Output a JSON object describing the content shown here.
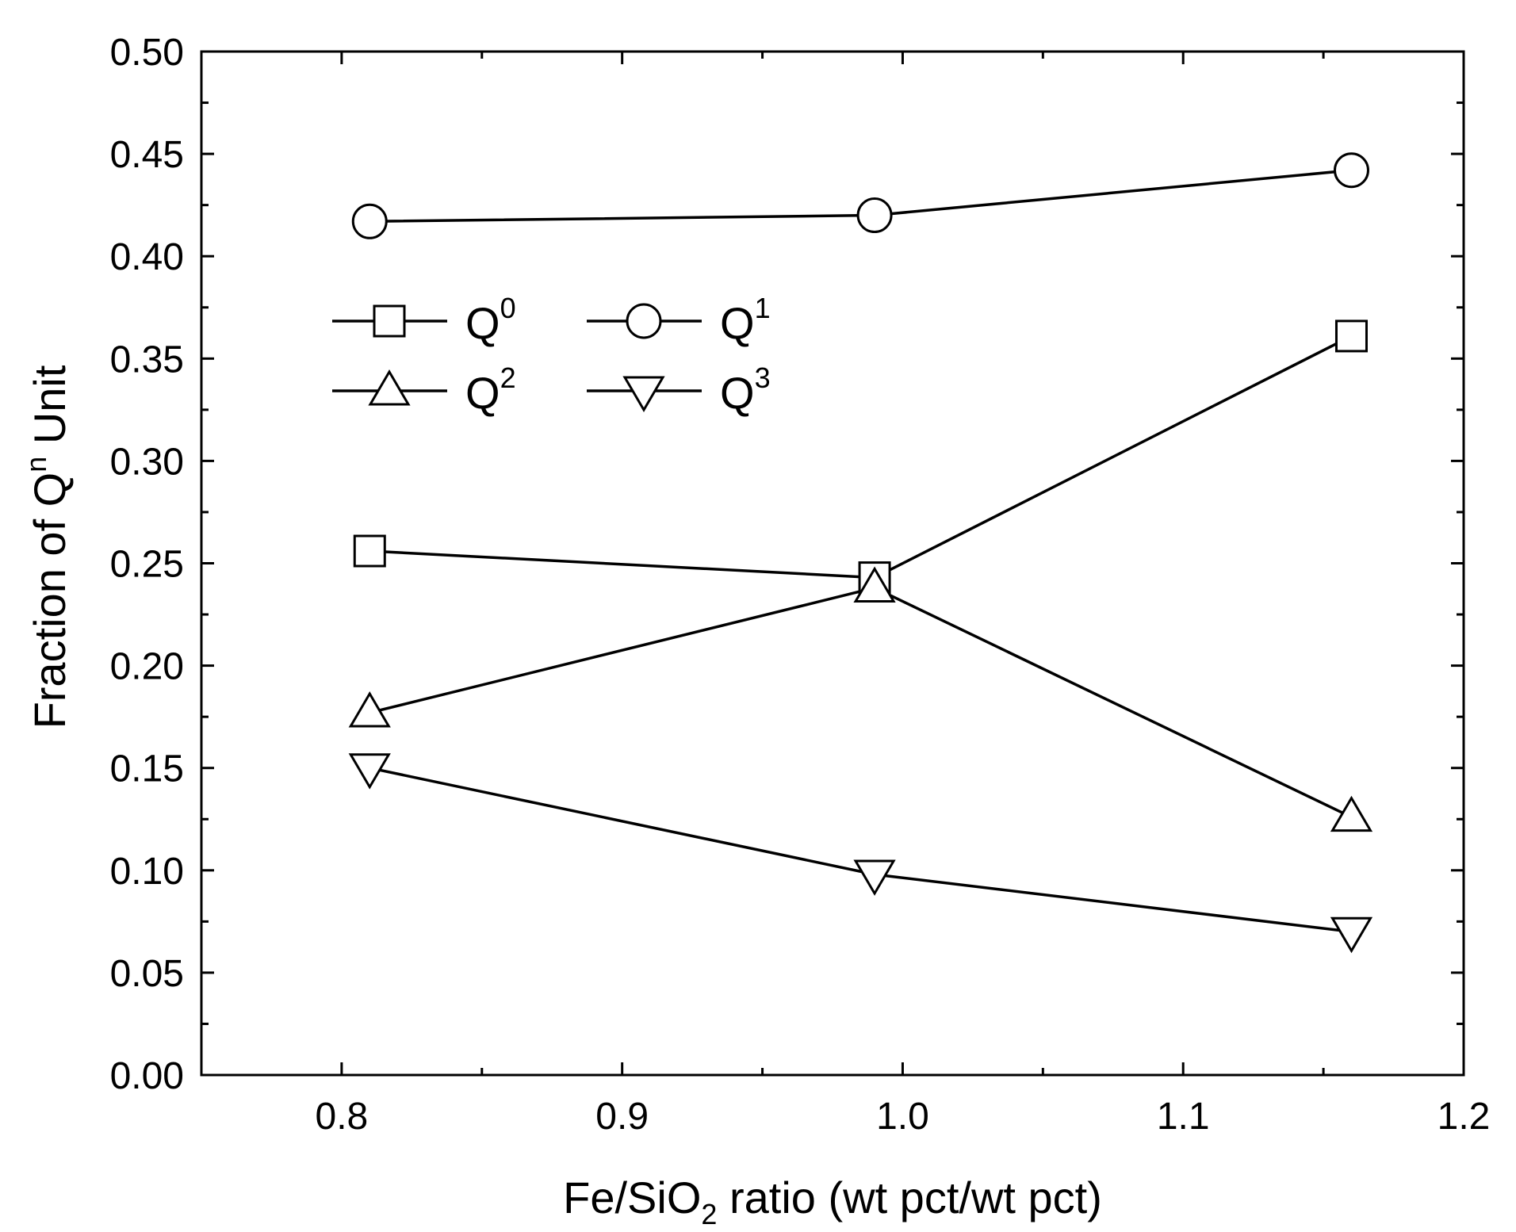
{
  "chart_data": {
    "type": "line",
    "xlabel": {
      "main": "Fe/SiO",
      "sub": "2",
      "tail": " ratio (wt pct/wt pct)"
    },
    "ylabel": {
      "main": "Fraction of Q",
      "sup": "n",
      "tail": " Unit"
    },
    "xlim": [
      0.75,
      1.2
    ],
    "ylim": [
      0.0,
      0.5
    ],
    "xticks": [
      0.8,
      0.9,
      1.0,
      1.1,
      1.2
    ],
    "xtick_labels": [
      "0.8",
      "0.9",
      "1.0",
      "1.1",
      "1.2"
    ],
    "yticks": [
      0.0,
      0.05,
      0.1,
      0.15,
      0.2,
      0.25,
      0.3,
      0.35,
      0.4,
      0.45,
      0.5
    ],
    "ytick_labels": [
      "0.00",
      "0.05",
      "0.10",
      "0.15",
      "0.20",
      "0.25",
      "0.30",
      "0.35",
      "0.40",
      "0.45",
      "0.50"
    ],
    "x": [
      0.81,
      0.99,
      1.16
    ],
    "series": [
      {
        "name": "Q0",
        "label_main": "Q",
        "label_sup": "0",
        "marker": "square",
        "values": [
          0.256,
          0.243,
          0.361
        ]
      },
      {
        "name": "Q1",
        "label_main": "Q",
        "label_sup": "1",
        "marker": "circle",
        "values": [
          0.417,
          0.42,
          0.442
        ]
      },
      {
        "name": "Q2",
        "label_main": "Q",
        "label_sup": "2",
        "marker": "triangle-up",
        "values": [
          0.177,
          0.238,
          0.126
        ]
      },
      {
        "name": "Q3",
        "label_main": "Q",
        "label_sup": "3",
        "marker": "triangle-down",
        "values": [
          0.15,
          0.098,
          0.07
        ]
      }
    ],
    "grid": false,
    "legend_position": "upper-left, two columns",
    "colors": {
      "line": "#000000",
      "marker_fill": "#ffffff"
    }
  }
}
